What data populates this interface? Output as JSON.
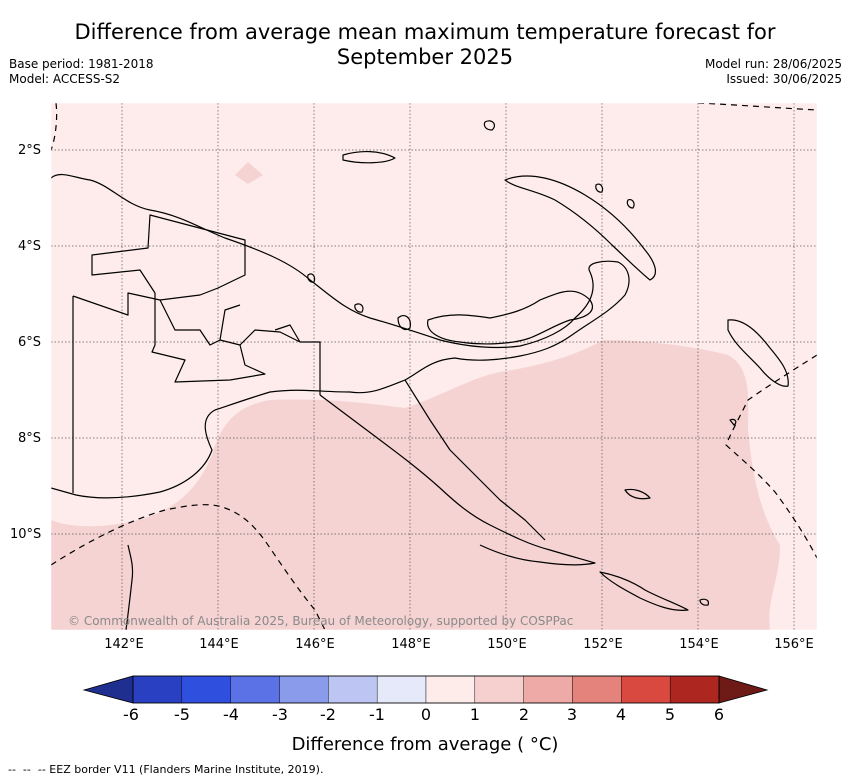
{
  "title_line1": "Difference from average mean maximum temperature forecast for",
  "title_line2": "September 2025",
  "meta": {
    "base_period": "Base period: 1981-2018",
    "model": "Model: ACCESS-S2",
    "model_run": "Model run: 28/06/2025",
    "issued": "Issued: 30/06/2025"
  },
  "map": {
    "lat_labels": [
      "2°S",
      "4°S",
      "6°S",
      "8°S",
      "10°S"
    ],
    "lon_labels": [
      "142°E",
      "144°E",
      "146°E",
      "148°E",
      "150°E",
      "152°E",
      "154°E",
      "156°E"
    ],
    "credit": "© Commonwealth of Australia 2025, Bureau of Meteorology, supported by COSPPac",
    "fill_colors": {
      "class_0_to_1": "#fdeceb",
      "class_1_to_2": "#f5d3d2",
      "land_outline": "#000000"
    }
  },
  "colorbar": {
    "ticks": [
      "-6",
      "-5",
      "-4",
      "-3",
      "-2",
      "-1",
      "0",
      "1",
      "2",
      "3",
      "4",
      "5",
      "6"
    ],
    "colors": [
      "#1f2f8f",
      "#2a40c2",
      "#2f4fdf",
      "#5b72e6",
      "#8a9bec",
      "#bdc5f3",
      "#e6e9fa",
      "#fdecea",
      "#f5d0ce",
      "#eeaaa6",
      "#e4827c",
      "#d9493f",
      "#ad2620",
      "#6e1a17"
    ],
    "label": "Difference from average ( °C)"
  },
  "footer": "--  --  -- EEZ border V11 (Flanders Marine Institute, 2019)."
}
